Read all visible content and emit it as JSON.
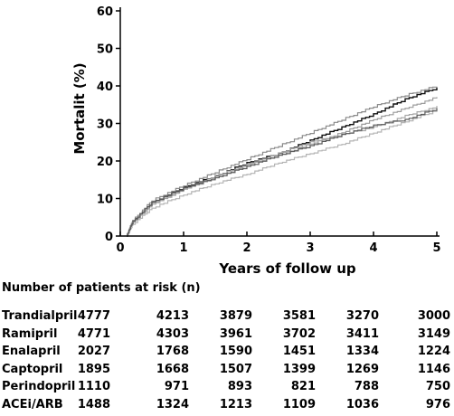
{
  "chart_data": {
    "type": "line",
    "xlabel": "Years of follow up",
    "ylabel": "Mortalit (%)",
    "xlim": [
      0,
      5
    ],
    "ylim": [
      0,
      60
    ],
    "xticks": [
      "0",
      "1",
      "2",
      "3",
      "4",
      "5"
    ],
    "yticks": [
      "0",
      "10",
      "20",
      "30",
      "40",
      "50",
      "60"
    ],
    "grid": false,
    "series": [
      {
        "color": "#111111",
        "x": [
          0.1,
          0.2,
          0.5,
          1,
          1.5,
          2,
          2.5,
          3,
          3.5,
          4,
          4.5,
          5
        ],
        "y": [
          0,
          4,
          9,
          13,
          16,
          19.5,
          22,
          25.5,
          29,
          32.5,
          36.5,
          39.5
        ]
      },
      {
        "color": "#8a8a8a",
        "x": [
          0.1,
          0.2,
          0.5,
          1,
          1.5,
          2,
          2.5,
          3,
          3.5,
          4,
          4.5,
          5
        ],
        "y": [
          0,
          4.2,
          9.5,
          13.5,
          17,
          20.5,
          24,
          27.5,
          31,
          34.5,
          37.5,
          40
        ]
      },
      {
        "color": "#9c9c9c",
        "x": [
          0.1,
          0.2,
          0.5,
          1,
          1.5,
          2,
          2.5,
          3,
          3.5,
          4,
          4.5,
          5
        ],
        "y": [
          0,
          3.8,
          8.5,
          12.5,
          15.5,
          19,
          21.5,
          24.5,
          27.5,
          31,
          34,
          37
        ]
      },
      {
        "color": "#a8a8a8",
        "x": [
          0.1,
          0.2,
          0.5,
          1,
          1.5,
          2,
          2.5,
          3,
          3.5,
          4,
          4.5,
          5
        ],
        "y": [
          0,
          3.5,
          8.5,
          12.5,
          16,
          19,
          22,
          25,
          27,
          29,
          32,
          34.5
        ]
      },
      {
        "color": "#b4b4b4",
        "x": [
          0.1,
          0.2,
          0.5,
          1,
          1.5,
          2,
          2.5,
          3,
          3.5,
          4,
          4.5,
          5
        ],
        "y": [
          0,
          3.2,
          7.5,
          11,
          14,
          16.5,
          19.5,
          22,
          24.5,
          27.5,
          30.5,
          33.5
        ]
      },
      {
        "color": "#5a5a5a",
        "x": [
          0.1,
          0.2,
          0.5,
          1,
          1.5,
          2,
          2.5,
          3,
          3.5,
          4,
          4.5,
          5
        ],
        "y": [
          0,
          3.9,
          9,
          12.8,
          15.5,
          18.5,
          21.5,
          24,
          27,
          29.5,
          31,
          34
        ]
      }
    ]
  },
  "risk_table": {
    "title": "Number of patients at risk (n)",
    "rows": [
      {
        "name": "Trandialpril",
        "values": [
          "4777",
          "4213",
          "3879",
          "3581",
          "3270",
          "3000"
        ]
      },
      {
        "name": "Ramipril",
        "values": [
          "4771",
          "4303",
          "3961",
          "3702",
          "3411",
          "3149"
        ]
      },
      {
        "name": "Enalapril",
        "values": [
          "2027",
          "1768",
          "1590",
          "1451",
          "1334",
          "1224"
        ]
      },
      {
        "name": "Captopril",
        "values": [
          "1895",
          "1668",
          "1507",
          "1399",
          "1269",
          "1146"
        ]
      },
      {
        "name": "Perindopril",
        "values": [
          "1110",
          "971",
          "893",
          "821",
          "788",
          "750"
        ]
      },
      {
        "name": "ACEi/ARB",
        "values": [
          "1488",
          "1324",
          "1213",
          "1109",
          "1036",
          "976"
        ]
      }
    ]
  }
}
